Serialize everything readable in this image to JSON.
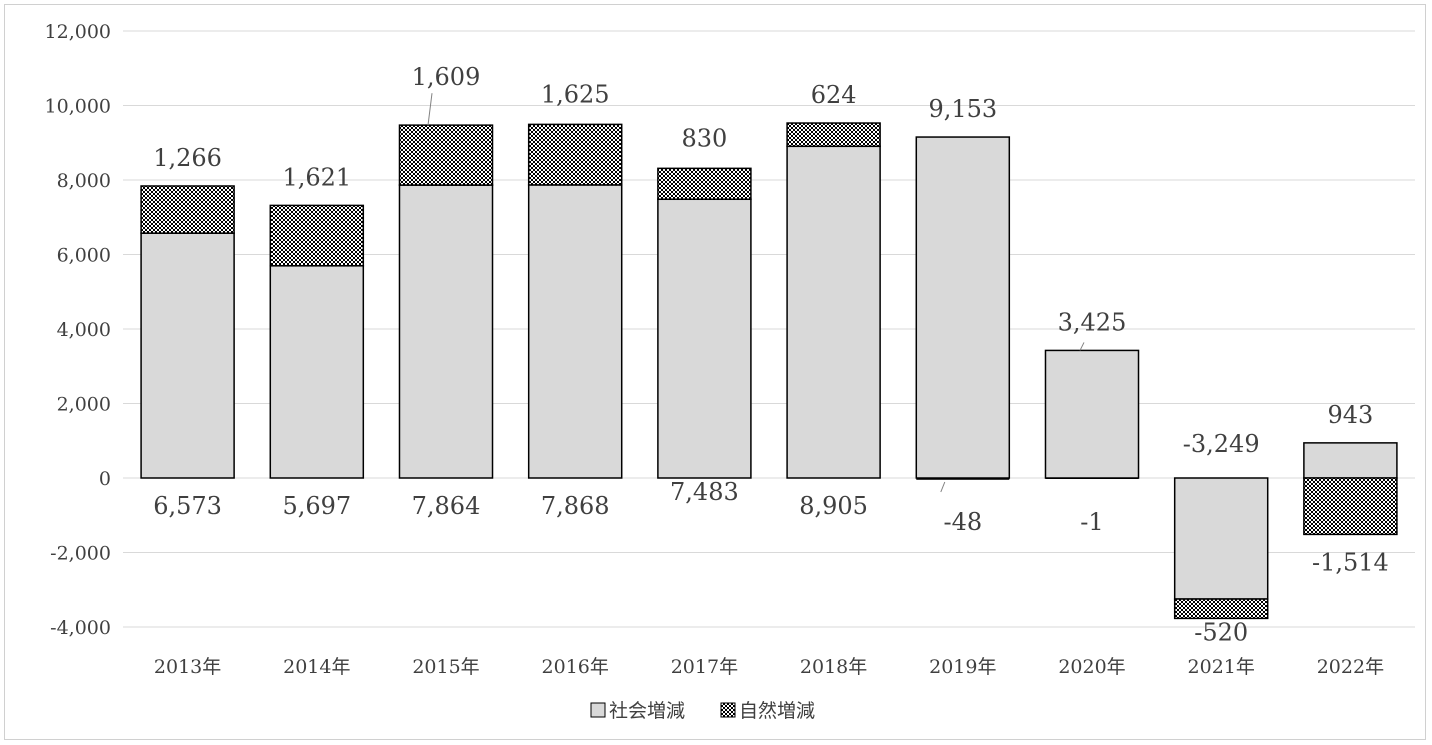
{
  "chart_data": {
    "type": "bar",
    "stacked": true,
    "categories": [
      "2013年",
      "2014年",
      "2015年",
      "2016年",
      "2017年",
      "2018年",
      "2019年",
      "2020年",
      "2021年",
      "2022年"
    ],
    "series": [
      {
        "name": "社会増減",
        "values": [
          6573,
          5697,
          7864,
          7868,
          7483,
          8905,
          9153,
          3425,
          -3249,
          943
        ],
        "fill": "#d9d9d9"
      },
      {
        "name": "自然増減",
        "values": [
          1266,
          1621,
          1609,
          1625,
          830,
          624,
          -48,
          -1,
          -520,
          -1514
        ],
        "fill": "pattern-crosshatch"
      }
    ],
    "ylim": [
      -4000,
      12000
    ],
    "yticks": [
      -4000,
      -2000,
      0,
      2000,
      4000,
      6000,
      8000,
      10000,
      12000
    ],
    "ytick_labels": [
      "-4,000",
      "-2,000",
      "0",
      "2,000",
      "4,000",
      "6,000",
      "8,000",
      "10,000",
      "12,000"
    ],
    "data_labels": {
      "social": [
        "6,573",
        "5,697",
        "7,864",
        "7,868",
        "7,483",
        "8,905",
        "9,153",
        "3,425",
        "-3,249",
        "943"
      ],
      "natural": [
        "1,266",
        "1,621",
        "1,609",
        "1,625",
        "830",
        "624",
        "-48",
        "-1",
        "-520",
        "-1,514"
      ]
    },
    "grid": true,
    "legend": "bottom",
    "title": "",
    "xlabel": "",
    "ylabel": ""
  },
  "colors": {
    "gridline": "#d9d9d9",
    "social_fill": "#d9d9d9",
    "bar_stroke": "#000000",
    "text": "#404040"
  }
}
